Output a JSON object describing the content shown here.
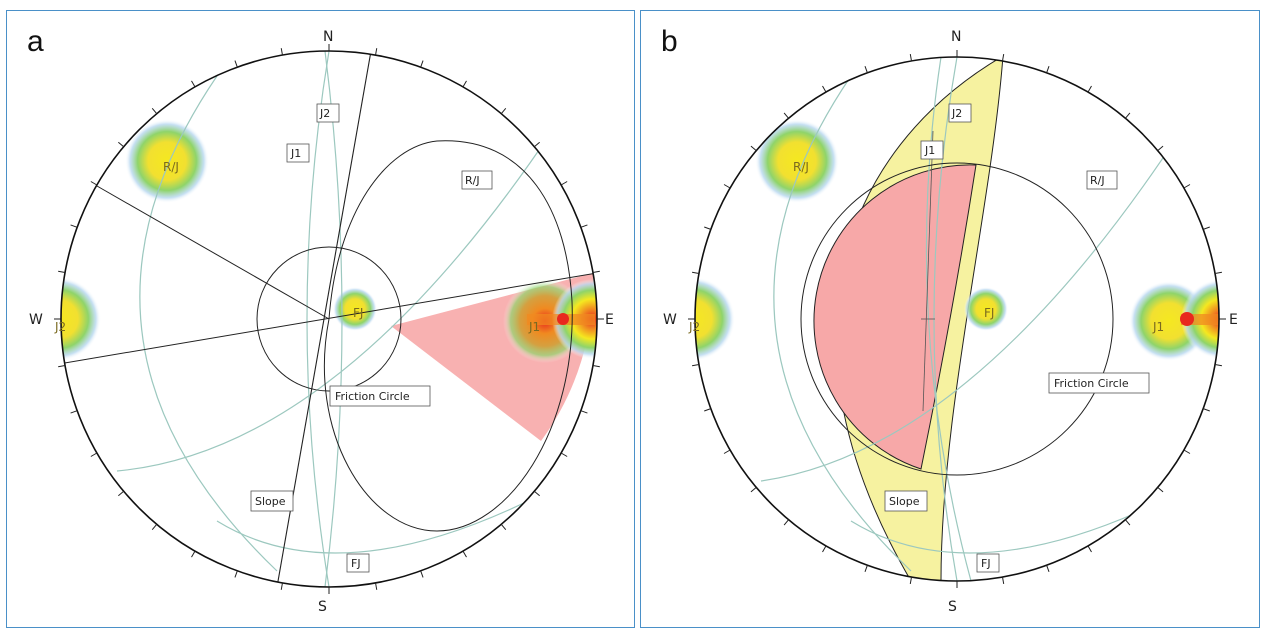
{
  "panels": [
    {
      "id": "a",
      "letter": "a",
      "directions": {
        "north": "N",
        "south": "S",
        "east": "E",
        "west": "W"
      },
      "labels": {
        "j1": "J1",
        "j2": "J2",
        "rj": "R/J",
        "fj": "FJ",
        "slope": "Slope",
        "friction": "Friction Circle",
        "blob_rj": "R/J",
        "blob_fj": "FJ",
        "blob_j1": "J1",
        "blob_j2": "J2"
      }
    },
    {
      "id": "b",
      "letter": "b",
      "directions": {
        "north": "N",
        "south": "S",
        "east": "E",
        "west": "W"
      },
      "labels": {
        "j1": "J1",
        "j2": "J2",
        "rj": "R/J",
        "fj": "FJ",
        "slope": "Slope",
        "friction": "Friction Circle",
        "blob_rj": "R/J",
        "blob_fj": "FJ",
        "blob_j1": "J1",
        "blob_j2": "J2"
      }
    }
  ],
  "colors": {
    "panel_border": "#4a90c8",
    "great_circle": "#9cc8bf",
    "outline": "#222222",
    "failure_zone": "#f7a8a8",
    "daylight_envelope": "#f6f2a0",
    "contour_hot": "#e8281e",
    "contour_warm": "#f08a20",
    "contour_mid": "#f5e820",
    "contour_cool": "#8fd46a",
    "contour_halo": "#b8d8f0"
  }
}
